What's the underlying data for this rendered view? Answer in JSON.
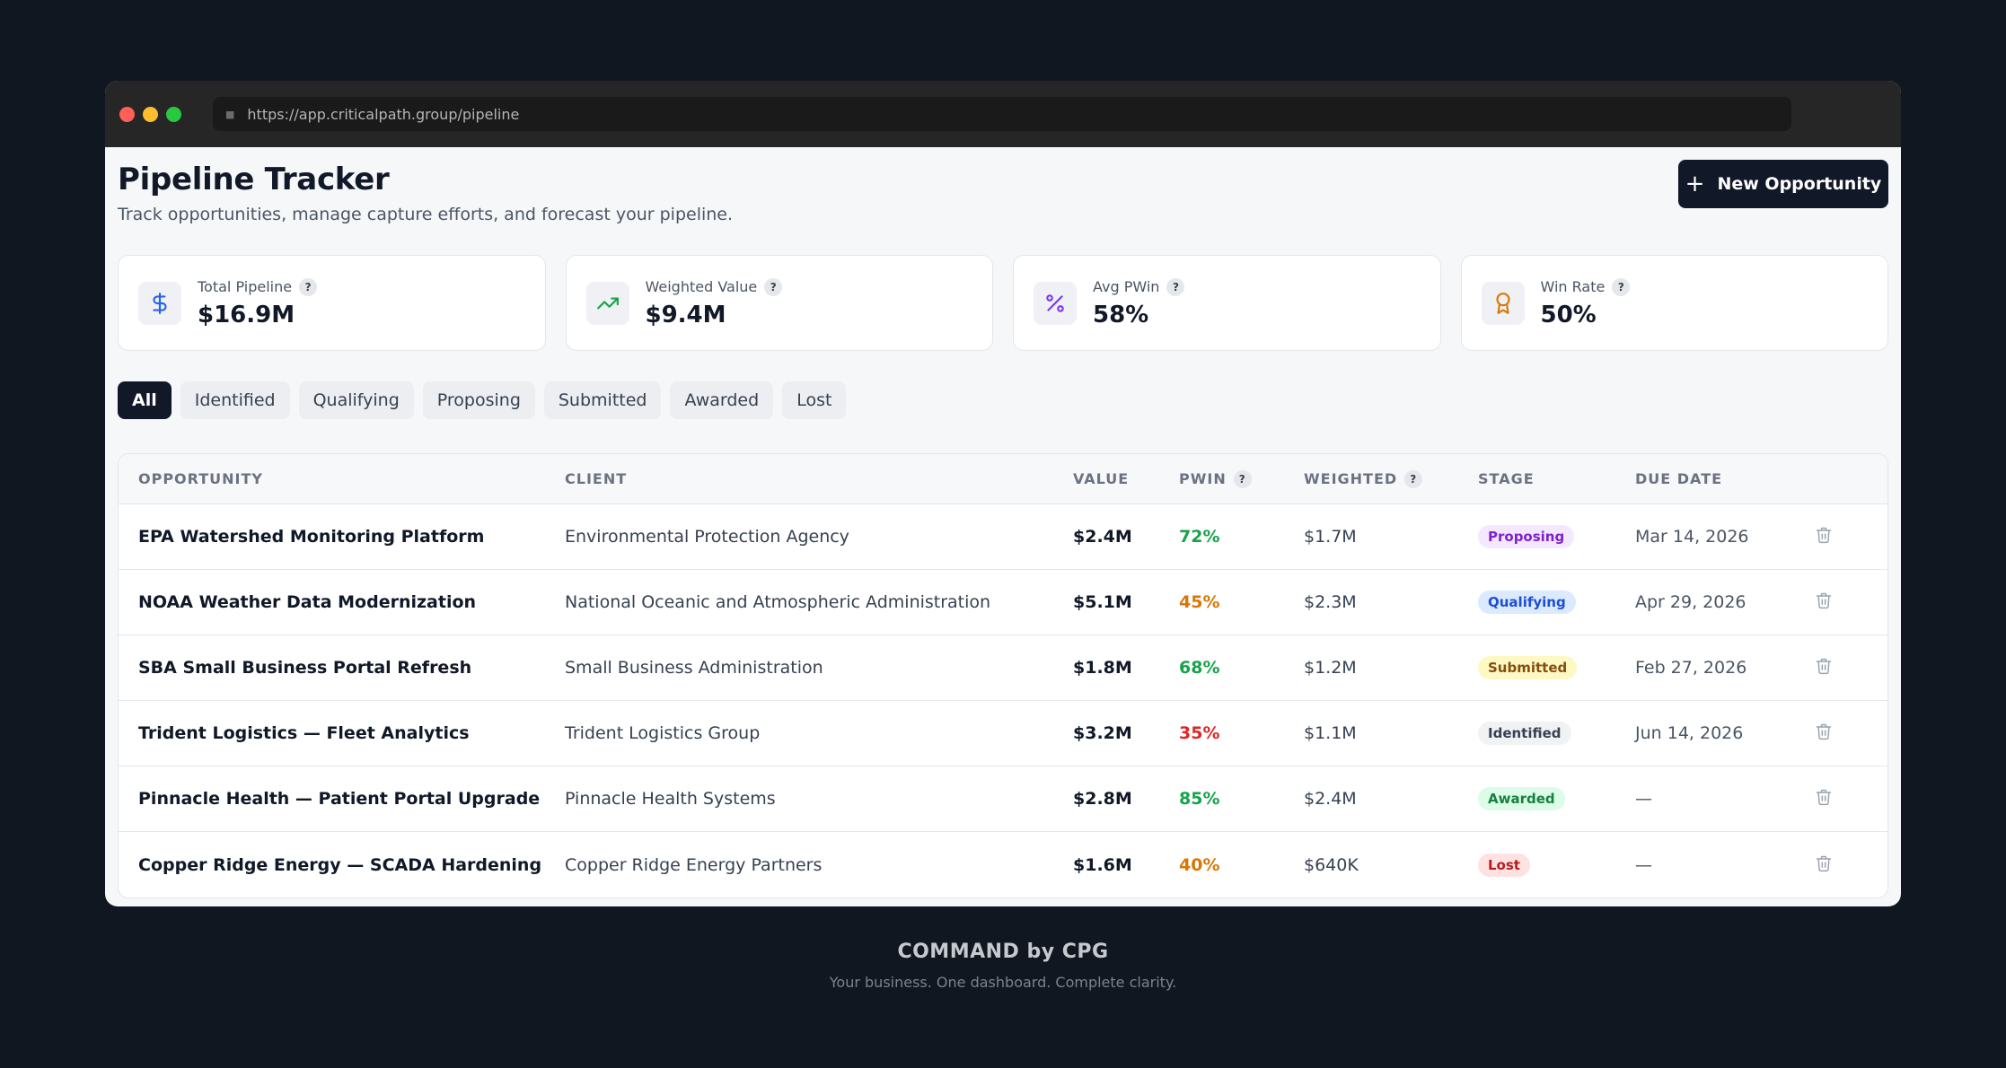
{
  "browser": {
    "url": "https://app.criticalpath.group/pipeline"
  },
  "header": {
    "title": "Pipeline Tracker",
    "subtitle": "Track opportunities, manage capture efforts, and forecast your pipeline.",
    "new_button_label": "New Opportunity"
  },
  "stats": [
    {
      "label": "Total Pipeline",
      "value": "$16.9M",
      "icon": "dollar-icon",
      "color": "#2563eb"
    },
    {
      "label": "Weighted Value",
      "value": "$9.4M",
      "icon": "trending-up-icon",
      "color": "#16a34a"
    },
    {
      "label": "Avg PWin",
      "value": "58%",
      "icon": "percent-icon",
      "color": "#7c3aed"
    },
    {
      "label": "Win Rate",
      "value": "50%",
      "icon": "award-icon",
      "color": "#d97706"
    }
  ],
  "help_glyph": "?",
  "filters": [
    "All",
    "Identified",
    "Qualifying",
    "Proposing",
    "Submitted",
    "Awarded",
    "Lost"
  ],
  "active_filter": "All",
  "table": {
    "columns": [
      "OPPORTUNITY",
      "CLIENT",
      "VALUE",
      "PWIN",
      "WEIGHTED",
      "STAGE",
      "DUE DATE"
    ],
    "rows": [
      {
        "opportunity": "EPA Watershed Monitoring Platform",
        "client": "Environmental Protection Agency",
        "value": "$2.4M",
        "pwin": "72%",
        "weighted": "$1.7M",
        "stage": "Proposing",
        "due": "Mar 14, 2026"
      },
      {
        "opportunity": "NOAA Weather Data Modernization",
        "client": "National Oceanic and Atmospheric Administration",
        "value": "$5.1M",
        "pwin": "45%",
        "weighted": "$2.3M",
        "stage": "Qualifying",
        "due": "Apr 29, 2026"
      },
      {
        "opportunity": "SBA Small Business Portal Refresh",
        "client": "Small Business Administration",
        "value": "$1.8M",
        "pwin": "68%",
        "weighted": "$1.2M",
        "stage": "Submitted",
        "due": "Feb 27, 2026"
      },
      {
        "opportunity": "Trident Logistics — Fleet Analytics",
        "client": "Trident Logistics Group",
        "value": "$3.2M",
        "pwin": "35%",
        "weighted": "$1.1M",
        "stage": "Identified",
        "due": "Jun 14, 2026"
      },
      {
        "opportunity": "Pinnacle Health — Patient Portal Upgrade",
        "client": "Pinnacle Health Systems",
        "value": "$2.8M",
        "pwin": "85%",
        "weighted": "$2.4M",
        "stage": "Awarded",
        "due": "—"
      },
      {
        "opportunity": "Copper Ridge Energy — SCADA Hardening",
        "client": "Copper Ridge Energy Partners",
        "value": "$1.6M",
        "pwin": "40%",
        "weighted": "$640K",
        "stage": "Lost",
        "due": "—"
      }
    ]
  },
  "pwin_colors": {
    "high": "#16a34a",
    "mid": "#d97706",
    "low": "#dc2626"
  },
  "stage_colors": {
    "Proposing": {
      "bg": "#f3e8ff",
      "fg": "#7e22ce"
    },
    "Qualifying": {
      "bg": "#dbeafe",
      "fg": "#1d4ed8"
    },
    "Submitted": {
      "bg": "#fef9c3",
      "fg": "#854d0e"
    },
    "Identified": {
      "bg": "#f1f2f4",
      "fg": "#374151"
    },
    "Awarded": {
      "bg": "#dcfce7",
      "fg": "#15803d"
    },
    "Lost": {
      "bg": "#fee2e2",
      "fg": "#b91c1c"
    }
  },
  "footer": {
    "title": "COMMAND by CPG",
    "tagline": "Your business. One dashboard. Complete clarity."
  }
}
